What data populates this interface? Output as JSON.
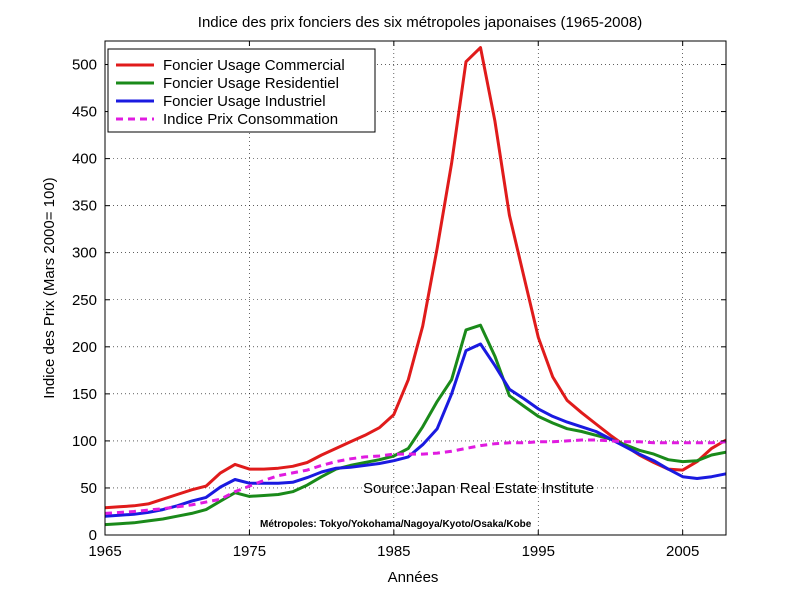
{
  "chart_data": {
    "type": "line",
    "title": "Indice des prix  fonciers des six métropoles japonaises (1965-2008)",
    "xlabel": "Années",
    "ylabel": "Indice des Prix (Mars 2000= 100)",
    "xlim": [
      1965,
      2008
    ],
    "ylim": [
      0,
      525
    ],
    "xticks": [
      1965,
      1975,
      1985,
      1995,
      2005
    ],
    "yticks": [
      0,
      50,
      100,
      150,
      200,
      250,
      300,
      350,
      400,
      450,
      500
    ],
    "grid": true,
    "legend_position": "top-left",
    "annotations": [
      "Source:Japan Real Estate Institute",
      "Métropoles: Tokyo/Yokohama/Nagoya/Kyoto/Osaka/Kobe"
    ],
    "series": [
      {
        "name": "Foncier Usage Commercial",
        "color": "#e01b1b",
        "dash": "solid",
        "x": [
          1965,
          1966,
          1967,
          1968,
          1969,
          1970,
          1971,
          1972,
          1973,
          1974,
          1975,
          1976,
          1977,
          1978,
          1979,
          1980,
          1981,
          1982,
          1983,
          1984,
          1985,
          1986,
          1987,
          1988,
          1989,
          1990,
          1991,
          1992,
          1993,
          1994,
          1995,
          1996,
          1997,
          1998,
          1999,
          2000,
          2001,
          2002,
          2003,
          2004,
          2005,
          2006,
          2007,
          2008
        ],
        "values": [
          29,
          30,
          31,
          33,
          38,
          43,
          48,
          52,
          66,
          75,
          70,
          70,
          71,
          73,
          77,
          85,
          92,
          99,
          106,
          114,
          128,
          165,
          222,
          305,
          395,
          503,
          518,
          440,
          340,
          275,
          210,
          168,
          143,
          130,
          118,
          106,
          95,
          85,
          77,
          70,
          69,
          78,
          92,
          101
        ]
      },
      {
        "name": "Foncier Usage Residentiel",
        "color": "#1a8a1a",
        "dash": "solid",
        "x": [
          1965,
          1966,
          1967,
          1968,
          1969,
          1970,
          1971,
          1972,
          1973,
          1974,
          1975,
          1976,
          1977,
          1978,
          1979,
          1980,
          1981,
          1982,
          1983,
          1984,
          1985,
          1986,
          1987,
          1988,
          1989,
          1990,
          1991,
          1992,
          1993,
          1994,
          1995,
          1996,
          1997,
          1998,
          1999,
          2000,
          2001,
          2002,
          2003,
          2004,
          2005,
          2006,
          2007,
          2008
        ],
        "values": [
          11,
          12,
          13,
          15,
          17,
          20,
          23,
          27,
          36,
          45,
          41,
          42,
          43,
          46,
          53,
          62,
          70,
          74,
          77,
          80,
          84,
          92,
          115,
          142,
          165,
          218,
          223,
          190,
          148,
          137,
          126,
          119,
          113,
          110,
          106,
          102,
          96,
          90,
          86,
          80,
          78,
          79,
          85,
          88
        ]
      },
      {
        "name": "Foncier Usage Industriel",
        "color": "#1a1ae0",
        "dash": "solid",
        "x": [
          1965,
          1966,
          1967,
          1968,
          1969,
          1970,
          1971,
          1972,
          1973,
          1974,
          1975,
          1976,
          1977,
          1978,
          1979,
          1980,
          1981,
          1982,
          1983,
          1984,
          1985,
          1986,
          1987,
          1988,
          1989,
          1990,
          1991,
          1992,
          1993,
          1994,
          1995,
          1996,
          1997,
          1998,
          1999,
          2000,
          2001,
          2002,
          2003,
          2004,
          2005,
          2006,
          2007,
          2008
        ],
        "values": [
          20,
          21,
          22,
          24,
          27,
          31,
          36,
          40,
          51,
          59,
          55,
          55,
          55,
          56,
          61,
          67,
          71,
          72,
          74,
          76,
          79,
          83,
          96,
          113,
          150,
          196,
          203,
          180,
          155,
          145,
          134,
          126,
          120,
          115,
          110,
          102,
          94,
          86,
          79,
          70,
          62,
          60,
          62,
          65
        ]
      },
      {
        "name": "Indice Prix Consommation",
        "color": "#e01be0",
        "dash": "dashed",
        "x": [
          1965,
          1967,
          1969,
          1971,
          1973,
          1974,
          1975,
          1976,
          1977,
          1978,
          1979,
          1980,
          1981,
          1982,
          1983,
          1984,
          1985,
          1986,
          1987,
          1988,
          1989,
          1990,
          1991,
          1992,
          1993,
          1994,
          1995,
          1996,
          1997,
          1998,
          1999,
          2000,
          2001,
          2002,
          2003,
          2004,
          2005,
          2006,
          2007,
          2008
        ],
        "values": [
          23,
          25,
          28,
          32,
          38,
          46,
          52,
          58,
          63,
          66,
          69,
          74,
          78,
          81,
          83,
          84,
          86,
          86,
          86,
          87,
          89,
          92,
          95,
          97,
          98,
          98,
          99,
          99,
          100,
          101,
          101,
          100,
          99,
          99,
          98,
          98,
          98,
          98,
          98,
          99
        ]
      }
    ]
  }
}
